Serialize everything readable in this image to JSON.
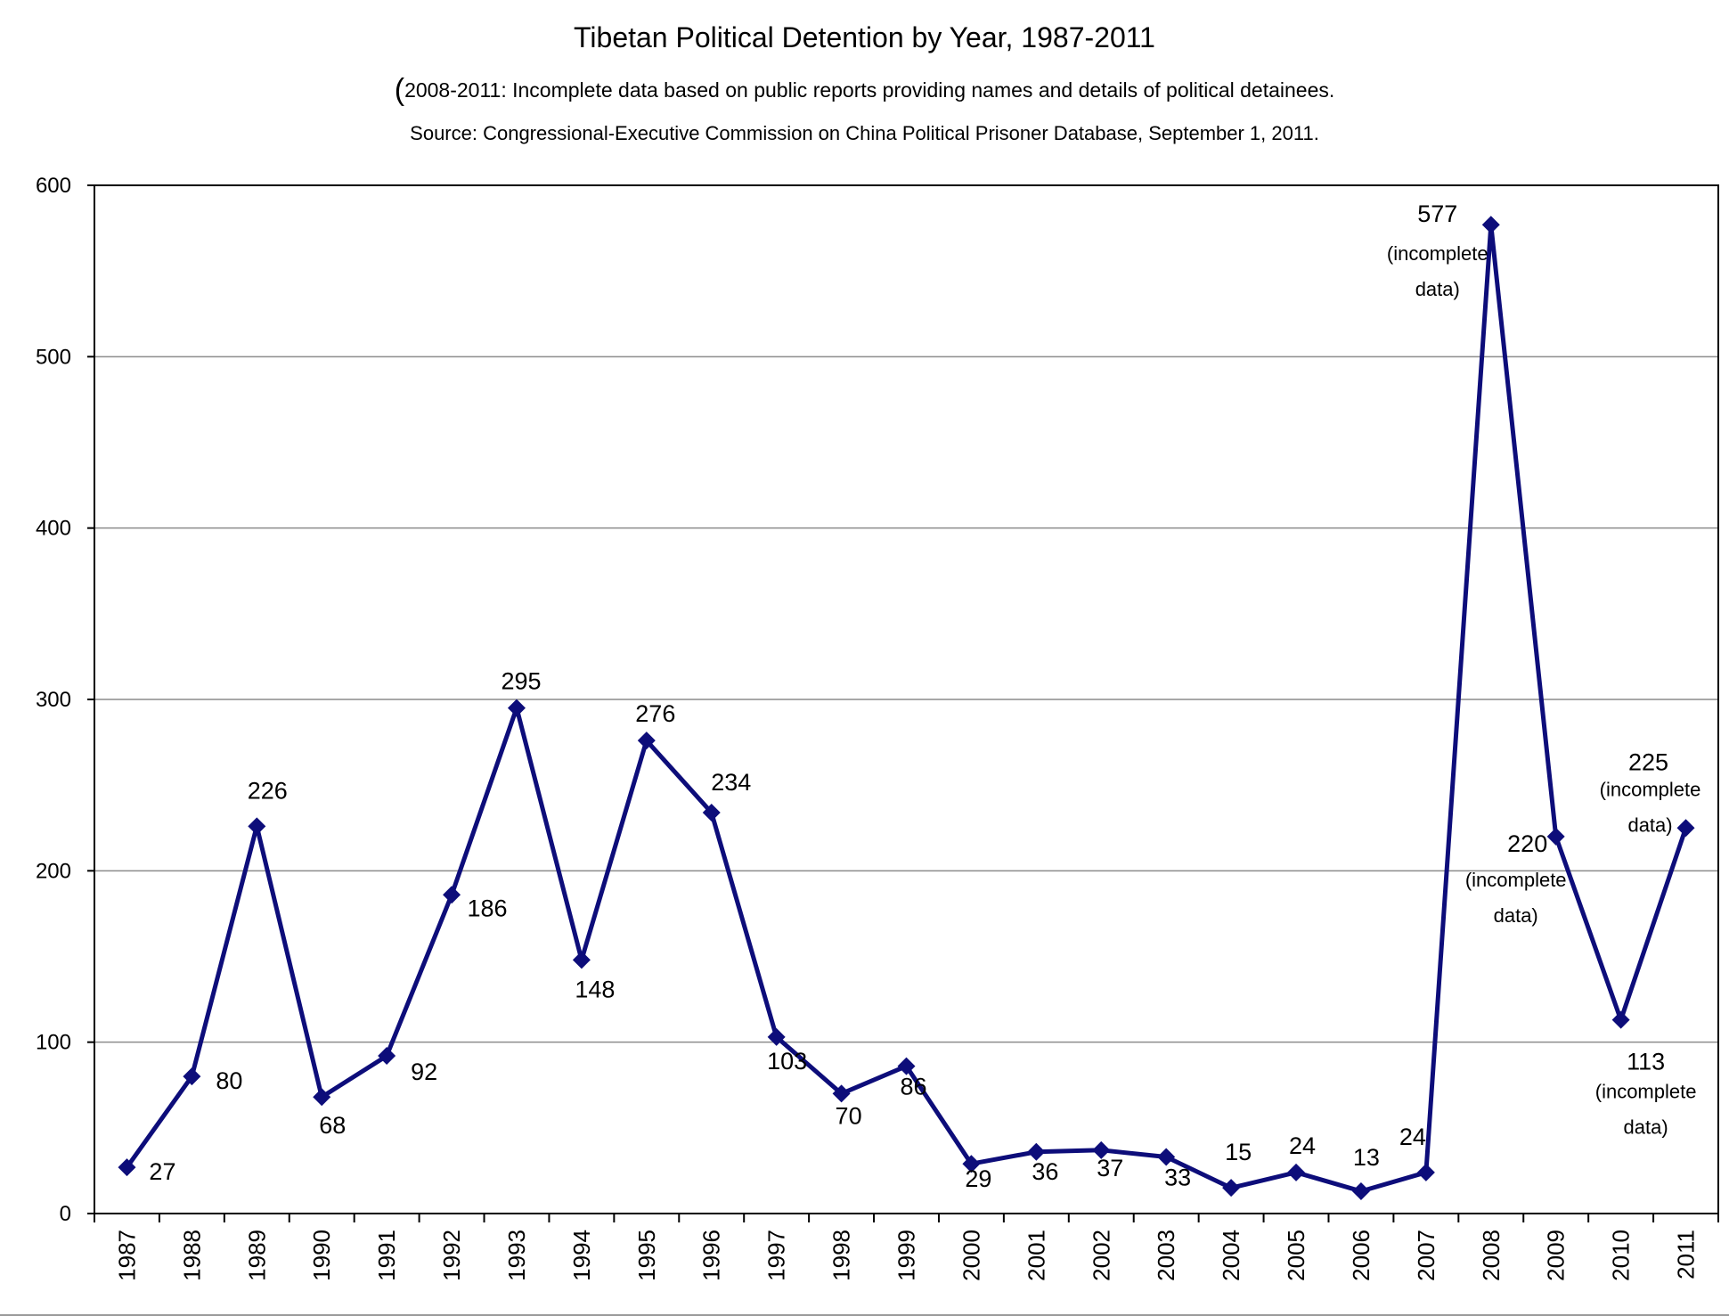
{
  "chart_data": {
    "type": "line",
    "title": "Tibetan Political Detention by Year, 1987-2011",
    "subtitle": "2008-2011: Incomplete data based on public reports providing names and details of political detainees.",
    "source": "Source: Congressional-Executive Commission on China Political Prisoner Database, September 1, 2011.",
    "xlabel": "",
    "ylabel": "",
    "ylim": [
      0,
      600
    ],
    "yticks": [
      "0",
      "100",
      "200",
      "300",
      "400",
      "500",
      "600"
    ],
    "grid": true,
    "legend": "none",
    "line_color": "#0d0d7a",
    "categories": [
      "1987",
      "1988",
      "1989",
      "1990",
      "1991",
      "1992",
      "1993",
      "1994",
      "1995",
      "1996",
      "1997",
      "1998",
      "1999",
      "2000",
      "2001",
      "2002",
      "2003",
      "2004",
      "2005",
      "2006",
      "2007",
      "2008",
      "2009",
      "2010",
      "2011"
    ],
    "values": [
      27,
      80,
      226,
      68,
      92,
      186,
      295,
      148,
      276,
      234,
      103,
      70,
      86,
      29,
      36,
      37,
      33,
      15,
      24,
      13,
      24,
      577,
      220,
      113,
      225
    ],
    "data_labels": [
      "27",
      "80",
      "226",
      "68",
      "92",
      "186",
      "295",
      "148",
      "276",
      "234",
      "103",
      "70",
      "86",
      "29",
      "36",
      "37",
      "33",
      "15",
      "24",
      "13",
      "24",
      "577",
      "220",
      "113",
      "225"
    ],
    "annotations": [
      "(incomplete",
      "data)"
    ]
  }
}
